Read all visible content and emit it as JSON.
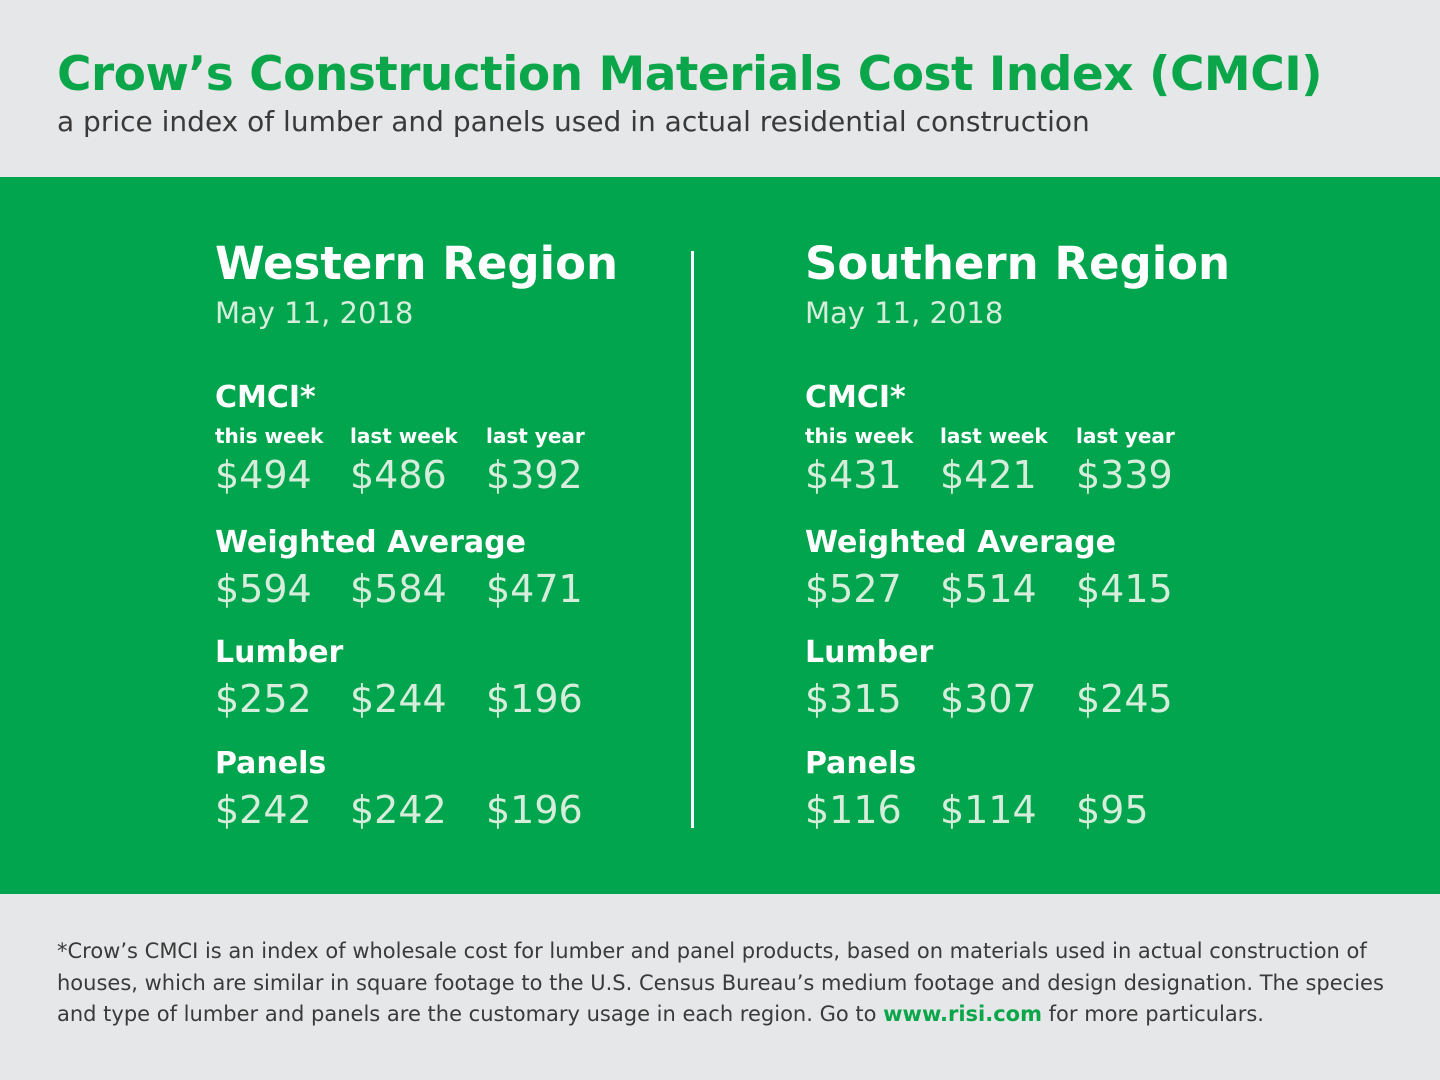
{
  "header": {
    "title": "Crow’s Construction Materials Cost Index (CMCI)",
    "subtitle": "a price index of lumber and panels used in actual residential construction"
  },
  "columns": [
    "this week",
    "last week",
    "last year"
  ],
  "regions": [
    {
      "name": "Western Region",
      "date": "May 11, 2018",
      "sections": [
        {
          "label": "CMCI*",
          "values": [
            "$494",
            "$486",
            "$392"
          ]
        },
        {
          "label": "Weighted Average",
          "values": [
            "$594",
            "$584",
            "$471"
          ]
        },
        {
          "label": "Lumber",
          "values": [
            "$252",
            "$244",
            "$196"
          ]
        },
        {
          "label": "Panels",
          "values": [
            "$242",
            "$242",
            "$196"
          ]
        }
      ]
    },
    {
      "name": "Southern Region",
      "date": "May 11, 2018",
      "sections": [
        {
          "label": "CMCI*",
          "values": [
            "$431",
            "$421",
            "$339"
          ]
        },
        {
          "label": "Weighted Average",
          "values": [
            "$527",
            "$514",
            "$415"
          ]
        },
        {
          "label": "Lumber",
          "values": [
            "$315",
            "$307",
            "$245"
          ]
        },
        {
          "label": "Panels",
          "values": [
            "$116",
            "$114",
            "$95"
          ]
        }
      ]
    }
  ],
  "footnote": {
    "text_before": "*Crow’s CMCI is an index of wholesale cost for lumber and panel products, based on materials used in actual construction of houses, which are similar in square footage to the U.S. Census Bureau’s medium footage and design designation. The species and type of lumber and panels are the customary usage in each region. Go to ",
    "link_text": "www.risi.com",
    "text_after": " for more particulars."
  },
  "colors": {
    "brand_green": "#0ca64a",
    "panel_green": "#00a54d",
    "background": "#e6e7e8"
  }
}
